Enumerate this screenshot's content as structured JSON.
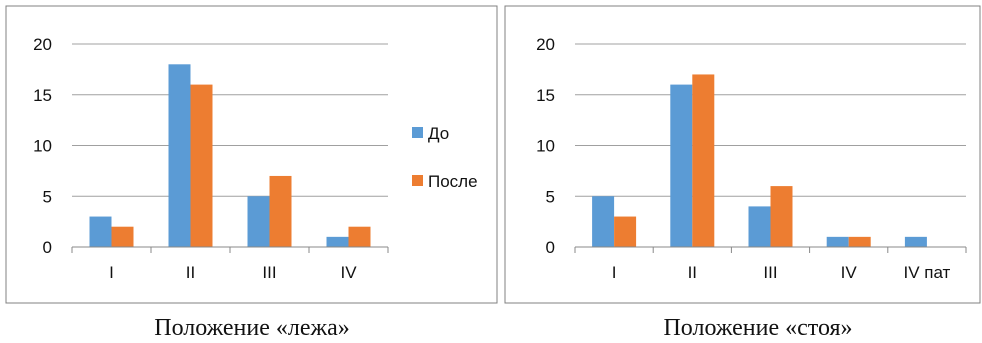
{
  "colors": {
    "series_do": "#5b9bd5",
    "series_posle": "#ed7d31",
    "grid": "#a0a0a0",
    "axis": "#888888",
    "frame": "#808080"
  },
  "chart_data": [
    {
      "type": "bar",
      "caption": "Положение «лежа»",
      "categories": [
        "I",
        "II",
        "III",
        "IV"
      ],
      "series": [
        {
          "name": "До",
          "values": [
            3,
            18,
            5,
            1
          ]
        },
        {
          "name": "После",
          "values": [
            2,
            16,
            7,
            2
          ]
        }
      ],
      "ylim": [
        0,
        20
      ],
      "yticks": [
        "0",
        "5",
        "10",
        "15",
        "20"
      ],
      "grid": true,
      "legend": "right"
    },
    {
      "type": "bar",
      "caption": "Положение «стоя»",
      "categories": [
        "I",
        "II",
        "III",
        "IV",
        "IV пат"
      ],
      "series": [
        {
          "name": "До",
          "values": [
            5,
            16,
            4,
            1,
            1
          ]
        },
        {
          "name": "После",
          "values": [
            3,
            17,
            6,
            1,
            0
          ]
        }
      ],
      "ylim": [
        0,
        20
      ],
      "yticks": [
        "0",
        "5",
        "10",
        "15",
        "20"
      ],
      "grid": true,
      "legend": "none"
    }
  ]
}
